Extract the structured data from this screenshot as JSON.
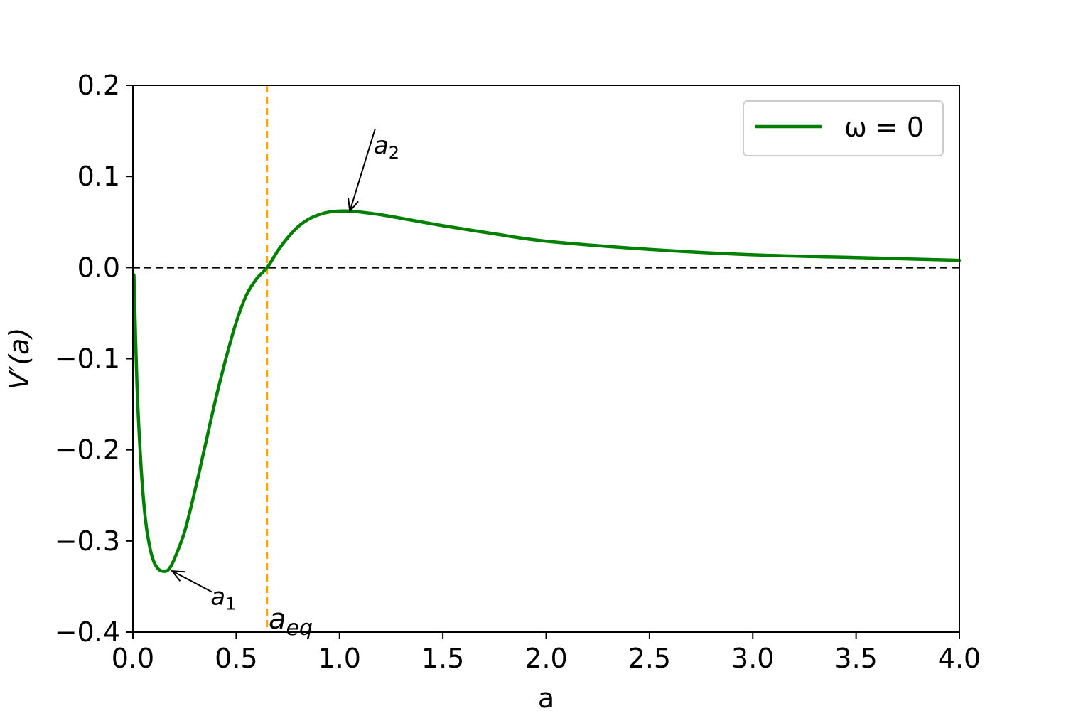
{
  "chart_data": {
    "type": "line",
    "xlabel": "a",
    "ylabel": "V′(a)",
    "xlim": [
      0.0,
      4.0
    ],
    "ylim": [
      -0.4,
      0.2
    ],
    "xticks": [
      0.0,
      0.5,
      1.0,
      1.5,
      2.0,
      2.5,
      3.0,
      3.5,
      4.0
    ],
    "xtick_labels": [
      "0.0",
      "0.5",
      "1.0",
      "1.5",
      "2.0",
      "2.5",
      "3.0",
      "3.5",
      "4.0"
    ],
    "yticks": [
      -0.4,
      -0.3,
      -0.2,
      -0.1,
      0.0,
      0.1,
      0.2
    ],
    "ytick_labels": [
      "−0.4",
      "−0.3",
      "−0.2",
      "−0.1",
      "0.0",
      "0.1",
      "0.2"
    ],
    "grid": false,
    "legend_position": "top-right",
    "series": [
      {
        "name": "ω = 0",
        "color": "#008000",
        "x": [
          0.005,
          0.02,
          0.04,
          0.06,
          0.08,
          0.1,
          0.12,
          0.14,
          0.17,
          0.2,
          0.25,
          0.3,
          0.35,
          0.4,
          0.45,
          0.5,
          0.55,
          0.6,
          0.65,
          0.7,
          0.75,
          0.8,
          0.85,
          0.9,
          0.95,
          1.0,
          1.05,
          1.1,
          1.2,
          1.3,
          1.4,
          1.5,
          1.75,
          2.0,
          2.5,
          3.0,
          3.5,
          4.0
        ],
        "y": [
          -0.008,
          -0.13,
          -0.22,
          -0.275,
          -0.305,
          -0.322,
          -0.33,
          -0.333,
          -0.332,
          -0.32,
          -0.29,
          -0.245,
          -0.195,
          -0.145,
          -0.1,
          -0.06,
          -0.03,
          -0.012,
          0.0,
          0.018,
          0.033,
          0.045,
          0.053,
          0.058,
          0.061,
          0.062,
          0.062,
          0.061,
          0.058,
          0.054,
          0.05,
          0.046,
          0.037,
          0.029,
          0.02,
          0.014,
          0.011,
          0.008
        ]
      }
    ],
    "reference_lines": [
      {
        "orientation": "horizontal",
        "value": 0.0,
        "color": "#000000",
        "style": "dashed"
      },
      {
        "orientation": "vertical",
        "value": 0.65,
        "color": "#FFA500",
        "style": "dashed"
      }
    ],
    "annotations": [
      {
        "label": "a",
        "subscript": "2",
        "point": [
          1.05,
          0.062
        ],
        "text_at": [
          1.2,
          0.125
        ],
        "arrow": true
      },
      {
        "label": "a",
        "subscript": "1",
        "point": [
          0.19,
          -0.333
        ],
        "text_at": [
          0.41,
          -0.37
        ],
        "arrow": true
      },
      {
        "label": "a",
        "subscript": "eq",
        "point": [
          0.65,
          -0.39
        ],
        "text_at": [
          0.65,
          -0.39
        ],
        "arrow": false
      }
    ]
  }
}
